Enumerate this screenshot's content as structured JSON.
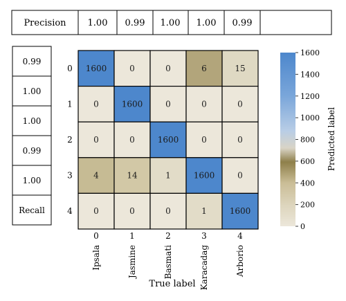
{
  "precision_table": {
    "label": "Precision",
    "values": [
      "1.00",
      "0.99",
      "1.00",
      "1.00",
      "0.99"
    ]
  },
  "recall_column": {
    "values": [
      "0.99",
      "1.00",
      "1.00",
      "0.99",
      "1.00"
    ],
    "label": "Recall"
  },
  "chart_data": {
    "type": "heatmap",
    "title": "",
    "xlabel": "True label",
    "ylabel": "",
    "row_ticks": [
      "0",
      "1",
      "2",
      "3",
      "4"
    ],
    "col_ticks": [
      "0",
      "1",
      "2",
      "3",
      "4"
    ],
    "x_categories": [
      "Ipsala",
      "Jasmine",
      "Basmati",
      "Karacadag",
      "Arborio"
    ],
    "values": [
      [
        1600,
        0,
        0,
        6,
        15
      ],
      [
        0,
        1600,
        0,
        0,
        0
      ],
      [
        0,
        0,
        1600,
        0,
        0
      ],
      [
        4,
        14,
        1,
        1600,
        0
      ],
      [
        0,
        0,
        0,
        1,
        1600
      ]
    ],
    "colorbar": {
      "label": "Predicted label",
      "range": [
        0,
        1600
      ],
      "ticks": [
        0,
        200,
        400,
        600,
        800,
        1000,
        1200,
        1400,
        1600
      ],
      "colors": {
        "low": "#ece7da",
        "mid_light": "#dbd3ba",
        "mid": "#a89a6c",
        "dark": "#7a6a38",
        "pale": "#ddd8cc",
        "light_blue": "#b7cee9",
        "high": "#4d87cc"
      }
    }
  }
}
